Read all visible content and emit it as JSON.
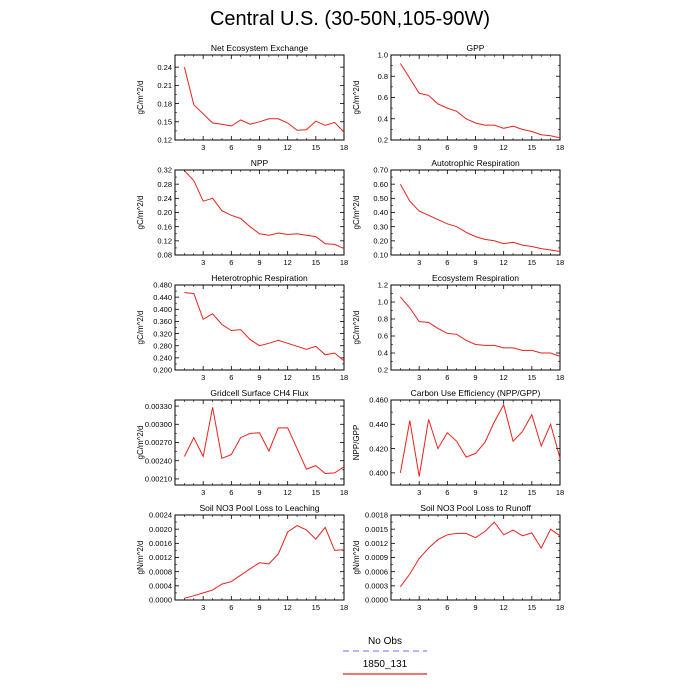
{
  "page_title": "Central U.S. (30-50N,105-90W)",
  "colors": {
    "model": "#e8231c",
    "obs": "#8a8af0",
    "axis": "#000000"
  },
  "legend": [
    {
      "label": "No Obs",
      "color": "#8a8af0",
      "dashed": true
    },
    {
      "label": "1850_131",
      "color": "#e8231c",
      "dashed": false
    }
  ],
  "chart_data": [
    {
      "type": "line",
      "title": "Net Ecosystem Exchange",
      "ylabel": "gC/m^2/d",
      "xlim": [
        0,
        18
      ],
      "ylim": [
        0.12,
        0.26
      ],
      "xticks": [
        3,
        6,
        9,
        12,
        15,
        18
      ],
      "xtick_labels": [
        "3",
        "6",
        "9",
        "12",
        "15",
        "18"
      ],
      "yticks": [
        0.12,
        0.15,
        0.18,
        0.21,
        0.24
      ],
      "ytick_labels": [
        "0.12",
        "0.15",
        "0.18",
        "0.21",
        "0.24"
      ],
      "series": [
        {
          "x": [
            1,
            2,
            3,
            4,
            5,
            6,
            7,
            8,
            9,
            10,
            11,
            12,
            13,
            14,
            15,
            16,
            17,
            18
          ],
          "values": [
            0.24,
            0.178,
            0.163,
            0.148,
            0.146,
            0.143,
            0.153,
            0.146,
            0.15,
            0.155,
            0.155,
            0.148,
            0.136,
            0.137,
            0.151,
            0.144,
            0.149,
            0.133
          ]
        }
      ]
    },
    {
      "type": "line",
      "title": "GPP",
      "ylabel": "gC/m^2/d",
      "xlim": [
        0,
        18
      ],
      "ylim": [
        0.2,
        1.0
      ],
      "xticks": [
        3,
        6,
        9,
        12,
        15,
        18
      ],
      "xtick_labels": [
        "3",
        "6",
        "9",
        "12",
        "15",
        "18"
      ],
      "yticks": [
        0.2,
        0.4,
        0.6,
        0.8,
        1.0
      ],
      "ytick_labels": [
        "0.2",
        "0.4",
        "0.6",
        "0.8",
        "1.0"
      ],
      "series": [
        {
          "x": [
            1,
            2,
            3,
            4,
            5,
            6,
            7,
            8,
            9,
            10,
            11,
            12,
            13,
            14,
            15,
            16,
            17,
            18
          ],
          "values": [
            0.92,
            0.78,
            0.64,
            0.62,
            0.54,
            0.5,
            0.47,
            0.4,
            0.36,
            0.34,
            0.34,
            0.31,
            0.33,
            0.3,
            0.28,
            0.25,
            0.24,
            0.22
          ]
        }
      ]
    },
    {
      "type": "line",
      "title": "NPP",
      "ylabel": "gC/m^2/d",
      "xlim": [
        0,
        18
      ],
      "ylim": [
        0.08,
        0.32
      ],
      "xticks": [
        3,
        6,
        9,
        12,
        15,
        18
      ],
      "xtick_labels": [
        "3",
        "6",
        "9",
        "12",
        "15",
        "18"
      ],
      "yticks": [
        0.08,
        0.12,
        0.16,
        0.2,
        0.24,
        0.28,
        0.32
      ],
      "ytick_labels": [
        "0.08",
        "0.12",
        "0.16",
        "0.20",
        "0.24",
        "0.28",
        "0.32"
      ],
      "series": [
        {
          "x": [
            1,
            2,
            3,
            4,
            5,
            6,
            7,
            8,
            9,
            10,
            11,
            12,
            13,
            14,
            15,
            16,
            17,
            18
          ],
          "values": [
            0.318,
            0.29,
            0.232,
            0.24,
            0.205,
            0.192,
            0.183,
            0.16,
            0.14,
            0.136,
            0.142,
            0.138,
            0.14,
            0.136,
            0.132,
            0.112,
            0.11,
            0.098
          ]
        }
      ]
    },
    {
      "type": "line",
      "title": "Autotrophic Respiration",
      "ylabel": "gC/m^2/d",
      "xlim": [
        0,
        18
      ],
      "ylim": [
        0.1,
        0.7
      ],
      "xticks": [
        3,
        6,
        9,
        12,
        15,
        18
      ],
      "xtick_labels": [
        "3",
        "6",
        "9",
        "12",
        "15",
        "18"
      ],
      "yticks": [
        0.1,
        0.2,
        0.3,
        0.4,
        0.5,
        0.6,
        0.7
      ],
      "ytick_labels": [
        "0.10",
        "0.20",
        "0.30",
        "0.40",
        "0.50",
        "0.60",
        "0.70"
      ],
      "series": [
        {
          "x": [
            1,
            2,
            3,
            4,
            5,
            6,
            7,
            8,
            9,
            10,
            11,
            12,
            13,
            14,
            15,
            16,
            17,
            18
          ],
          "values": [
            0.6,
            0.48,
            0.41,
            0.38,
            0.35,
            0.32,
            0.3,
            0.26,
            0.23,
            0.21,
            0.2,
            0.18,
            0.19,
            0.17,
            0.16,
            0.145,
            0.135,
            0.125
          ]
        }
      ]
    },
    {
      "type": "line",
      "title": "Heterotrophic Respiration",
      "ylabel": "gC/m^2/d",
      "xlim": [
        0,
        18
      ],
      "ylim": [
        0.2,
        0.48
      ],
      "xticks": [
        3,
        6,
        9,
        12,
        15,
        18
      ],
      "xtick_labels": [
        "3",
        "6",
        "9",
        "12",
        "15",
        "18"
      ],
      "yticks": [
        0.2,
        0.24,
        0.28,
        0.32,
        0.36,
        0.4,
        0.44,
        0.48
      ],
      "ytick_labels": [
        "0.200",
        "0.240",
        "0.280",
        "0.320",
        "0.360",
        "0.400",
        "0.440",
        "0.480"
      ],
      "series": [
        {
          "x": [
            1,
            2,
            3,
            4,
            5,
            6,
            7,
            8,
            9,
            10,
            11,
            12,
            13,
            14,
            15,
            16,
            17,
            18
          ],
          "values": [
            0.455,
            0.452,
            0.367,
            0.385,
            0.35,
            0.33,
            0.333,
            0.3,
            0.28,
            0.288,
            0.298,
            0.288,
            0.278,
            0.268,
            0.278,
            0.25,
            0.256,
            0.23
          ]
        }
      ]
    },
    {
      "type": "line",
      "title": "Ecosystem Respiration",
      "ylabel": "gC/m^2/d",
      "xlim": [
        0,
        18
      ],
      "ylim": [
        0.2,
        1.2
      ],
      "xticks": [
        3,
        6,
        9,
        12,
        15,
        18
      ],
      "xtick_labels": [
        "3",
        "6",
        "9",
        "12",
        "15",
        "18"
      ],
      "yticks": [
        0.2,
        0.4,
        0.6,
        0.8,
        1.0,
        1.2
      ],
      "ytick_labels": [
        "0.2",
        "0.4",
        "0.6",
        "0.8",
        "1.0",
        "1.2"
      ],
      "series": [
        {
          "x": [
            1,
            2,
            3,
            4,
            5,
            6,
            7,
            8,
            9,
            10,
            11,
            12,
            13,
            14,
            15,
            16,
            17,
            18
          ],
          "values": [
            1.06,
            0.93,
            0.77,
            0.76,
            0.69,
            0.63,
            0.62,
            0.55,
            0.5,
            0.49,
            0.49,
            0.46,
            0.46,
            0.43,
            0.43,
            0.4,
            0.4,
            0.36
          ]
        }
      ]
    },
    {
      "type": "line",
      "title": "Gridcell Surface CH4 Flux",
      "ylabel": "gC/m^2/d",
      "xlim": [
        0,
        18
      ],
      "ylim": [
        0.002,
        0.0034
      ],
      "xticks": [
        3,
        6,
        9,
        12,
        15,
        18
      ],
      "xtick_labels": [
        "3",
        "6",
        "9",
        "12",
        "15",
        "18"
      ],
      "yticks": [
        0.0021,
        0.0024,
        0.0027,
        0.003,
        0.0033
      ],
      "ytick_labels": [
        "0.00210",
        "0.00240",
        "0.00270",
        "0.00300",
        "0.00330"
      ],
      "series": [
        {
          "x": [
            1,
            2,
            3,
            4,
            5,
            6,
            7,
            8,
            9,
            10,
            11,
            12,
            13,
            14,
            15,
            16,
            17,
            18
          ],
          "values": [
            0.00247,
            0.00278,
            0.00247,
            0.00328,
            0.00244,
            0.0025,
            0.00278,
            0.00285,
            0.00286,
            0.00256,
            0.00294,
            0.00294,
            0.0026,
            0.00226,
            0.00232,
            0.00219,
            0.0022,
            0.0023
          ]
        }
      ]
    },
    {
      "type": "line",
      "title": "Carbon Use Efficiency (NPP/GPP)",
      "ylabel": "NPP/GPP",
      "xlim": [
        0,
        18
      ],
      "ylim": [
        0.39,
        0.46
      ],
      "xticks": [
        3,
        6,
        9,
        12,
        15,
        18
      ],
      "xtick_labels": [
        "3",
        "6",
        "9",
        "12",
        "15",
        "18"
      ],
      "yticks": [
        0.4,
        0.42,
        0.44,
        0.46
      ],
      "ytick_labels": [
        "0.400",
        "0.420",
        "0.440",
        "0.460"
      ],
      "series": [
        {
          "x": [
            1,
            2,
            3,
            4,
            5,
            6,
            7,
            8,
            9,
            10,
            11,
            12,
            13,
            14,
            15,
            16,
            17,
            18
          ],
          "values": [
            0.4,
            0.443,
            0.397,
            0.444,
            0.42,
            0.433,
            0.426,
            0.413,
            0.416,
            0.425,
            0.442,
            0.456,
            0.426,
            0.434,
            0.448,
            0.422,
            0.44,
            0.412
          ]
        }
      ]
    },
    {
      "type": "line",
      "title": "Soil NO3 Pool Loss to Leaching",
      "ylabel": "gN/m^2/d",
      "xlim": [
        0,
        18
      ],
      "ylim": [
        0,
        0.0024
      ],
      "xticks": [
        3,
        6,
        9,
        12,
        15,
        18
      ],
      "xtick_labels": [
        "3",
        "6",
        "9",
        "12",
        "15",
        "18"
      ],
      "yticks": [
        0,
        0.0004,
        0.0008,
        0.0012,
        0.0016,
        0.002,
        0.0024
      ],
      "ytick_labels": [
        "0.0000",
        "0.0004",
        "0.0008",
        "0.0012",
        "0.0016",
        "0.0020",
        "0.0024"
      ],
      "series": [
        {
          "x": [
            1,
            2,
            3,
            4,
            5,
            6,
            7,
            8,
            9,
            10,
            11,
            12,
            13,
            14,
            15,
            16,
            17,
            18
          ],
          "values": [
            5e-05,
            0.00012,
            0.0002,
            0.00028,
            0.00045,
            0.00052,
            0.0007,
            0.00088,
            0.00105,
            0.00102,
            0.0013,
            0.00192,
            0.0021,
            0.00198,
            0.00172,
            0.00205,
            0.0014,
            0.00142
          ]
        }
      ]
    },
    {
      "type": "line",
      "title": "Soil NO3 Pool Loss to Runoff",
      "ylabel": "gN/m^2/d",
      "xlim": [
        0,
        18
      ],
      "ylim": [
        0,
        0.0018
      ],
      "xticks": [
        3,
        6,
        9,
        12,
        15,
        18
      ],
      "xtick_labels": [
        "3",
        "6",
        "9",
        "12",
        "15",
        "18"
      ],
      "yticks": [
        0,
        0.0003,
        0.0006,
        0.0009,
        0.0012,
        0.0015,
        0.0018
      ],
      "ytick_labels": [
        "0.0000",
        "0.0003",
        "0.0006",
        "0.0009",
        "0.0012",
        "0.0015",
        "0.0018"
      ],
      "series": [
        {
          "x": [
            1,
            2,
            3,
            4,
            5,
            6,
            7,
            8,
            9,
            10,
            11,
            12,
            13,
            14,
            15,
            16,
            17,
            18
          ],
          "values": [
            0.00028,
            0.00055,
            0.00088,
            0.0011,
            0.00128,
            0.00138,
            0.00141,
            0.00141,
            0.00132,
            0.00145,
            0.00165,
            0.00138,
            0.00148,
            0.00136,
            0.00142,
            0.0011,
            0.0015,
            0.00136
          ]
        }
      ]
    }
  ]
}
